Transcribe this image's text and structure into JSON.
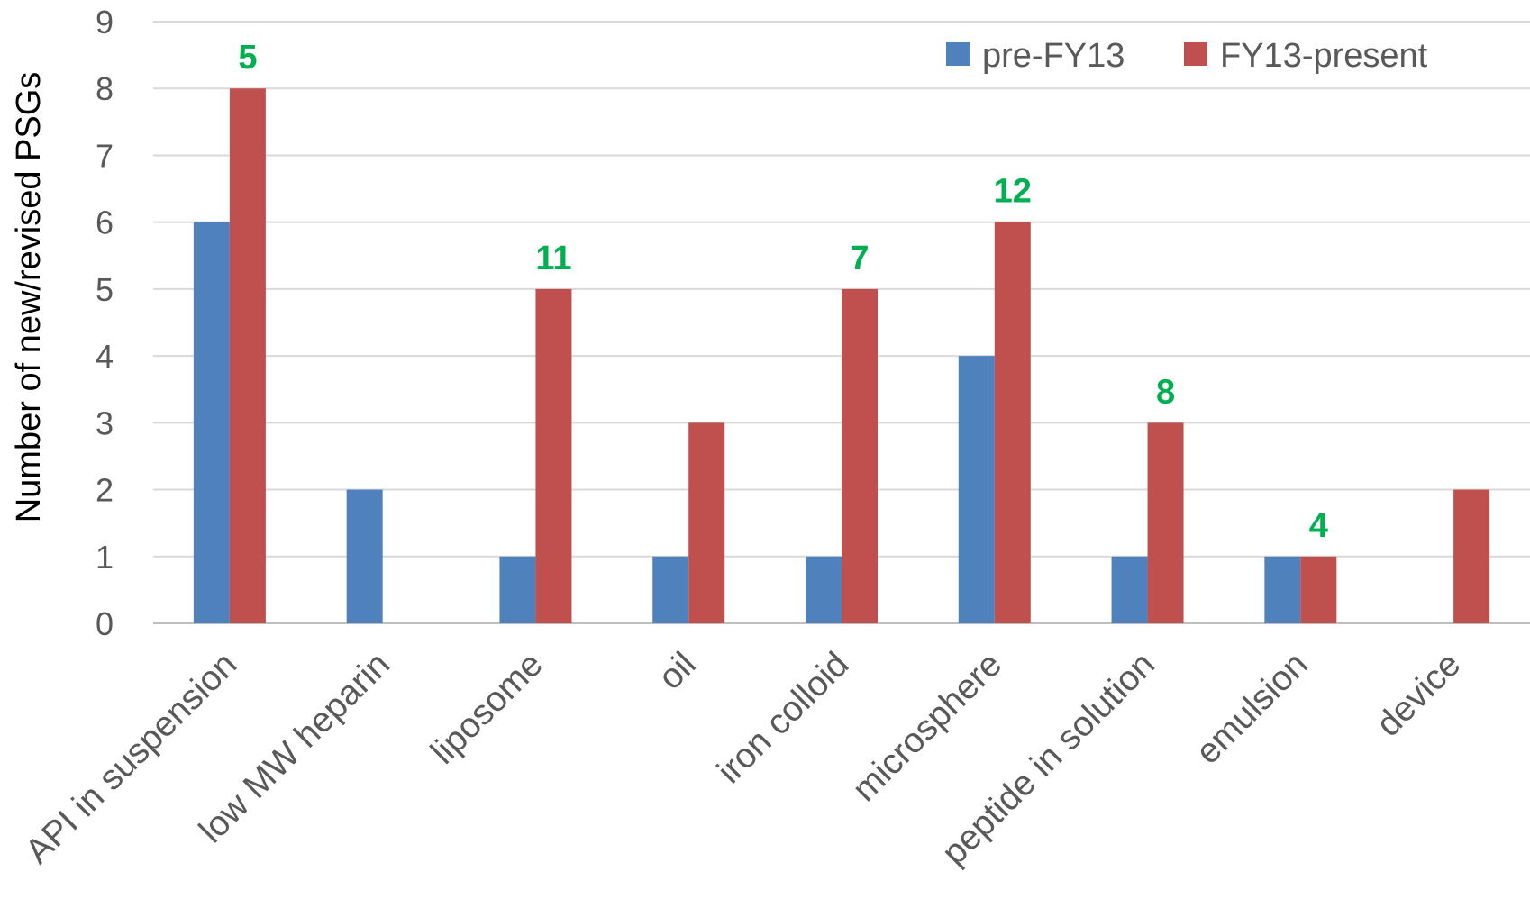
{
  "chart_data": {
    "type": "bar",
    "categories": [
      "API in suspension",
      "low MW heparin",
      "liposome",
      "oil",
      "iron colloid",
      "microsphere",
      "peptide in solution",
      "emulsion",
      "device"
    ],
    "series": [
      {
        "name": "pre-FY13",
        "color": "#4f81bd",
        "values": [
          6,
          2,
          1,
          1,
          1,
          4,
          1,
          1,
          0
        ]
      },
      {
        "name": "FY13-present",
        "color": "#c0504d",
        "values": [
          8,
          0,
          5,
          3,
          5,
          6,
          3,
          1,
          2
        ]
      }
    ],
    "annotations": [
      "5",
      "",
      "11",
      "",
      "7",
      "12",
      "8",
      "4",
      ""
    ],
    "annotation_color": "#00b050",
    "title": "",
    "xlabel": "",
    "ylabel": "Number of new/revised PSGs",
    "ylim": [
      0,
      9
    ],
    "yticks": [
      "0",
      "1",
      "2",
      "3",
      "4",
      "5",
      "6",
      "7",
      "8",
      "9"
    ],
    "grid": true,
    "legend_position": "top-right"
  }
}
